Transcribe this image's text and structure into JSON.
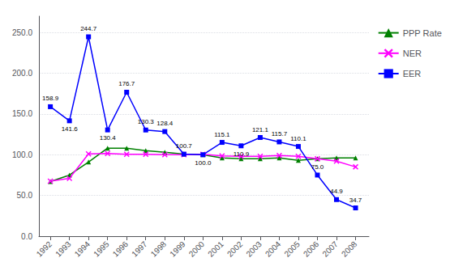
{
  "chart_data": {
    "type": "line",
    "x": [
      1992,
      1993,
      1994,
      1995,
      1996,
      1997,
      1998,
      1999,
      2000,
      2001,
      2002,
      2003,
      2004,
      2005,
      2006,
      2007,
      2008
    ],
    "xlim": [
      1991.4,
      2008.7
    ],
    "xticks": [
      1992,
      1993,
      1994,
      1995,
      1996,
      1997,
      1998,
      1999,
      2000,
      2001,
      2002,
      2003,
      2004,
      2005,
      2006,
      2007,
      2008
    ],
    "ylim": [
      0.0,
      270.0
    ],
    "yticks": [
      {
        "value": 0,
        "label": "0.0"
      },
      {
        "value": 50,
        "label": "50.0"
      },
      {
        "value": 100,
        "label": "100.0"
      },
      {
        "value": 150,
        "label": "150.0"
      },
      {
        "value": 200,
        "label": "200.0"
      },
      {
        "value": 250,
        "label": "250.0"
      }
    ],
    "grid": true,
    "legend": "right",
    "series": [
      {
        "name": "PPP Rate",
        "color": "#008000",
        "marker": "triangle",
        "values": [
          67.0,
          75.0,
          91.0,
          108.0,
          108.0,
          105.0,
          103.0,
          100.7,
          100.0,
          96.0,
          95.0,
          95.0,
          96.0,
          93.0,
          95.0,
          96.0,
          96.0
        ]
      },
      {
        "name": "NER",
        "color": "#ff00ff",
        "marker": "x",
        "values": [
          67.5,
          71.0,
          101.0,
          101.5,
          100.5,
          100.5,
          100.0,
          100.0,
          100.5,
          98.5,
          98.0,
          98.0,
          99.0,
          98.0,
          95.0,
          92.0,
          85.0
        ]
      },
      {
        "name": "EER",
        "color": "#0000ff",
        "marker": "square",
        "data_labels": true,
        "values": [
          158.9,
          141.6,
          244.7,
          130.4,
          176.7,
          130.3,
          128.4,
          100.7,
          100.0,
          115.1,
          110.9,
          121.1,
          115.7,
          110.1,
          75.0,
          44.9,
          34.7
        ],
        "value_labels": [
          "158.9",
          "141.6",
          "244.7",
          "130.4",
          "176.7",
          "130.3",
          "128.4",
          "100.7",
          "100.0",
          "115.1",
          "110.9",
          "121.1",
          "115.7",
          "110.1",
          "75.0",
          "44.9",
          "34.7"
        ]
      }
    ]
  }
}
